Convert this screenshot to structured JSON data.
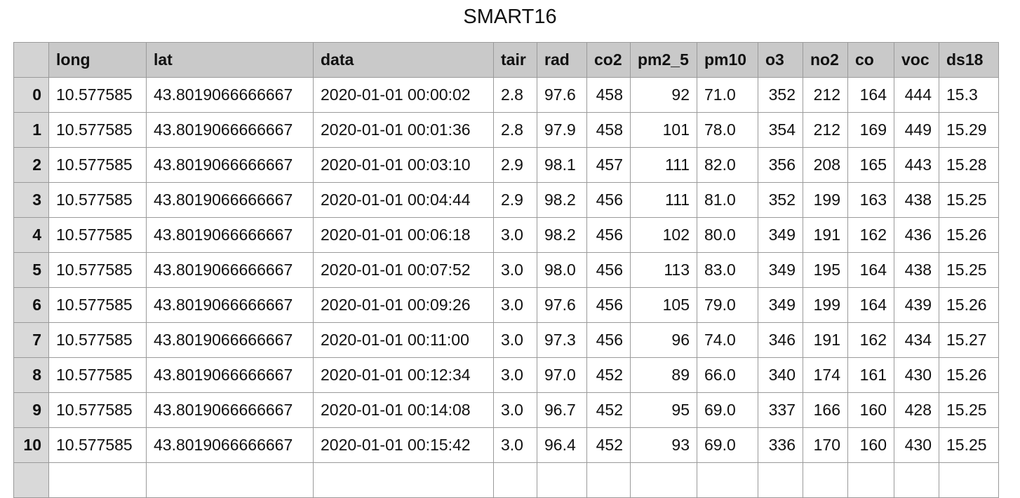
{
  "title": "SMART16",
  "columns": [
    "long",
    "lat",
    "data",
    "tair",
    "rad",
    "co2",
    "pm2_5",
    "pm10",
    "o3",
    "no2",
    "co",
    "voc",
    "ds18"
  ],
  "rows": [
    {
      "index": "0",
      "cells": [
        "10.577585",
        "43.8019066666667",
        "2020-01-01 00:00:02",
        "2.8",
        "97.6",
        "458",
        "92",
        "71.0",
        "352",
        "212",
        "164",
        "444",
        "15.3"
      ]
    },
    {
      "index": "1",
      "cells": [
        "10.577585",
        "43.8019066666667",
        "2020-01-01 00:01:36",
        "2.8",
        "97.9",
        "458",
        "101",
        "78.0",
        "354",
        "212",
        "169",
        "449",
        "15.29"
      ]
    },
    {
      "index": "2",
      "cells": [
        "10.577585",
        "43.8019066666667",
        "2020-01-01 00:03:10",
        "2.9",
        "98.1",
        "457",
        "111",
        "82.0",
        "356",
        "208",
        "165",
        "443",
        "15.28"
      ]
    },
    {
      "index": "3",
      "cells": [
        "10.577585",
        "43.8019066666667",
        "2020-01-01 00:04:44",
        "2.9",
        "98.2",
        "456",
        "111",
        "81.0",
        "352",
        "199",
        "163",
        "438",
        "15.25"
      ]
    },
    {
      "index": "4",
      "cells": [
        "10.577585",
        "43.8019066666667",
        "2020-01-01 00:06:18",
        "3.0",
        "98.2",
        "456",
        "102",
        "80.0",
        "349",
        "191",
        "162",
        "436",
        "15.26"
      ]
    },
    {
      "index": "5",
      "cells": [
        "10.577585",
        "43.8019066666667",
        "2020-01-01 00:07:52",
        "3.0",
        "98.0",
        "456",
        "113",
        "83.0",
        "349",
        "195",
        "164",
        "438",
        "15.25"
      ]
    },
    {
      "index": "6",
      "cells": [
        "10.577585",
        "43.8019066666667",
        "2020-01-01 00:09:26",
        "3.0",
        "97.6",
        "456",
        "105",
        "79.0",
        "349",
        "199",
        "164",
        "439",
        "15.26"
      ]
    },
    {
      "index": "7",
      "cells": [
        "10.577585",
        "43.8019066666667",
        "2020-01-01 00:11:00",
        "3.0",
        "97.3",
        "456",
        "96",
        "74.0",
        "346",
        "191",
        "162",
        "434",
        "15.27"
      ]
    },
    {
      "index": "8",
      "cells": [
        "10.577585",
        "43.8019066666667",
        "2020-01-01 00:12:34",
        "3.0",
        "97.0",
        "452",
        "89",
        "66.0",
        "340",
        "174",
        "161",
        "430",
        "15.26"
      ]
    },
    {
      "index": "9",
      "cells": [
        "10.577585",
        "43.8019066666667",
        "2020-01-01 00:14:08",
        "3.0",
        "96.7",
        "452",
        "95",
        "69.0",
        "337",
        "166",
        "160",
        "428",
        "15.25"
      ]
    },
    {
      "index": "10",
      "cells": [
        "10.577585",
        "43.8019066666667",
        "2020-01-01 00:15:42",
        "3.0",
        "96.4",
        "452",
        "93",
        "69.0",
        "336",
        "170",
        "160",
        "430",
        "15.25"
      ]
    }
  ]
}
